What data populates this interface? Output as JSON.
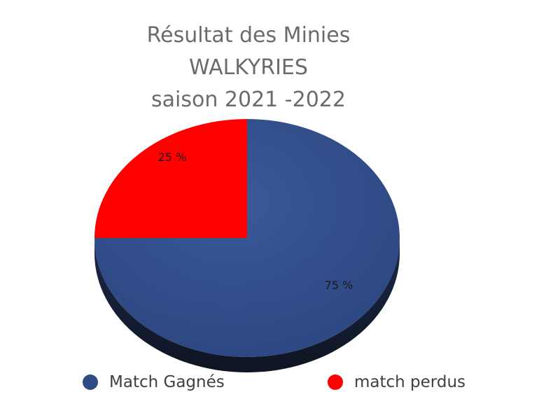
{
  "chart_data": {
    "type": "pie",
    "title_lines": [
      "Résultat des Minies",
      "WALKYRIES",
      "saison 2021 -2022"
    ],
    "slices": [
      {
        "label": "Match Gagnés",
        "value": 75,
        "data_label": "75 %",
        "color": "#2f4b84"
      },
      {
        "label": "match perdus",
        "value": 25,
        "data_label": "25 %",
        "color": "#ff0000"
      }
    ],
    "legend_position": "bottom",
    "style": "3d-tilted"
  }
}
